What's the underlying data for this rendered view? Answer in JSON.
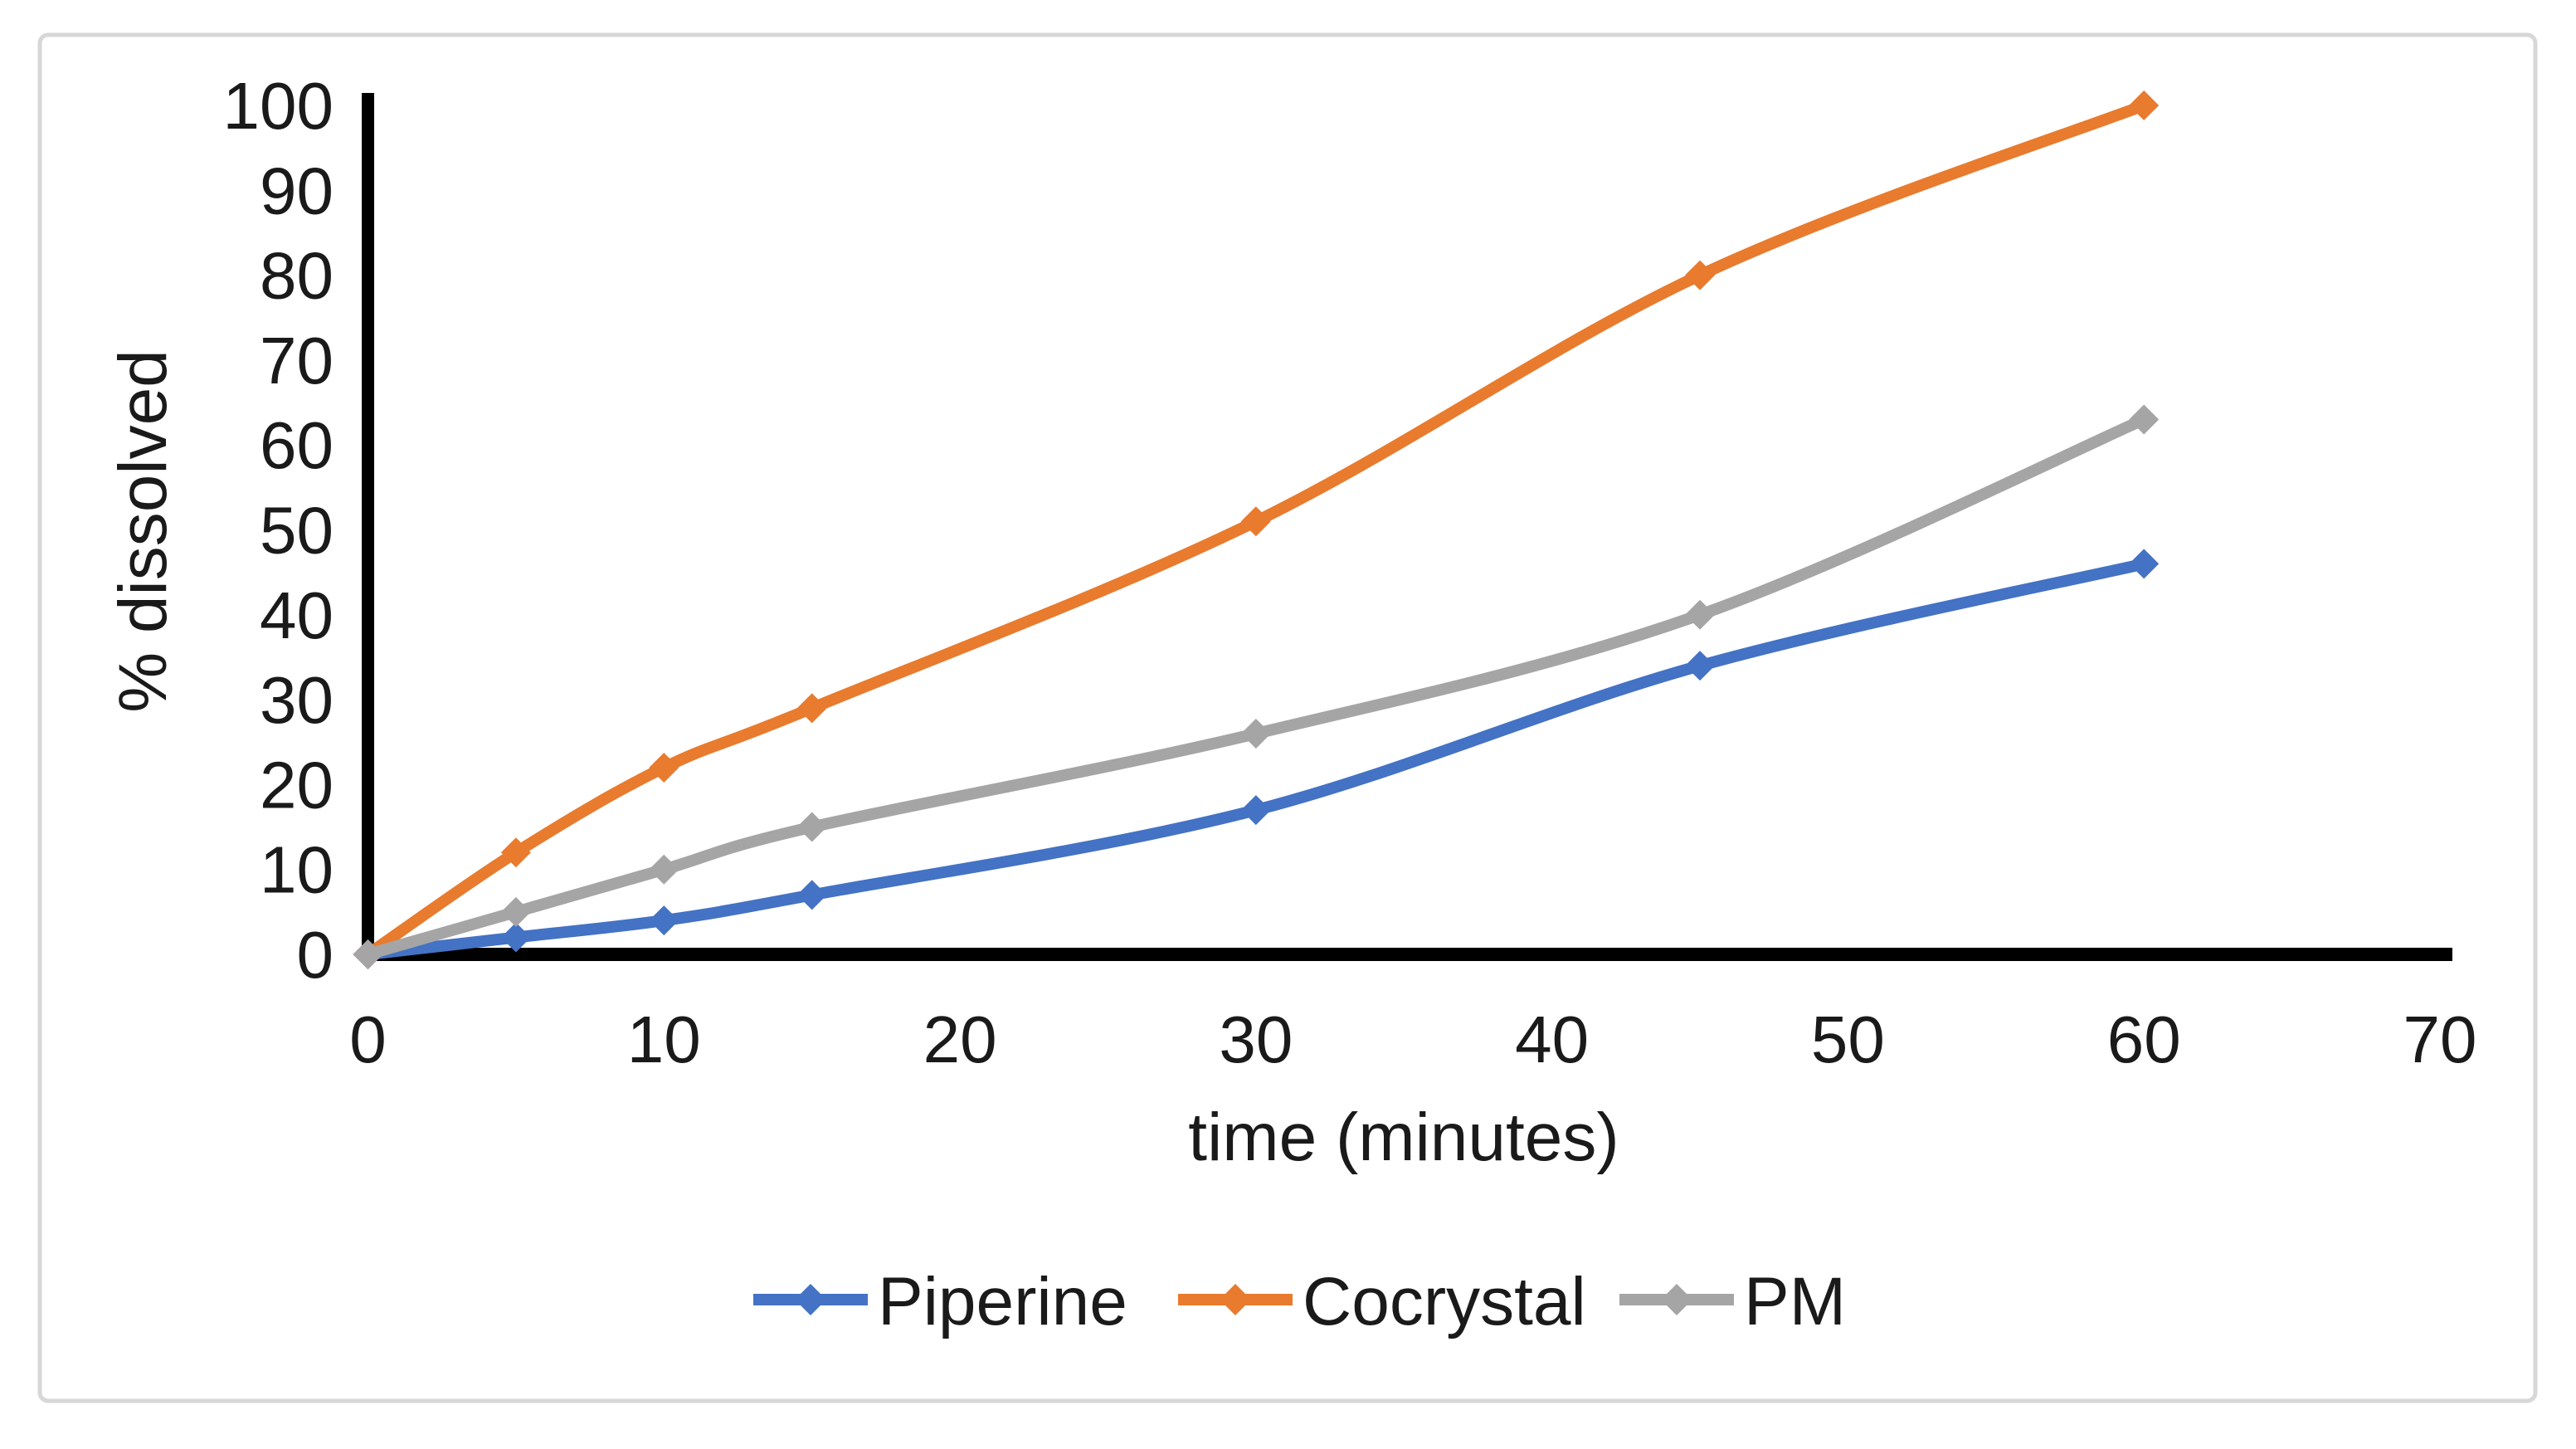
{
  "frame": {
    "background": "#ffffff",
    "border_color": "#d7d7d7"
  },
  "chart_data": {
    "type": "line",
    "title": "",
    "xlabel": "time (minutes)",
    "ylabel": "% dissolved",
    "x": [
      0,
      5,
      10,
      15,
      30,
      45,
      60
    ],
    "series": [
      {
        "name": "Piperine",
        "color": "#4472C4",
        "values": [
          0,
          2,
          4,
          7,
          17,
          34,
          46
        ]
      },
      {
        "name": "Cocrystal",
        "color": "#E87B2E",
        "values": [
          0,
          12,
          22,
          29,
          51,
          80,
          100
        ]
      },
      {
        "name": "PM",
        "color": "#A5A5A5",
        "values": [
          0,
          5,
          10,
          15,
          26,
          40,
          63
        ]
      }
    ],
    "xlim": [
      0,
      70
    ],
    "ylim": [
      0,
      100
    ],
    "x_ticks": [
      0,
      10,
      20,
      30,
      40,
      50,
      60,
      70
    ],
    "y_ticks": [
      0,
      10,
      20,
      30,
      40,
      50,
      60,
      70,
      80,
      90,
      100
    ],
    "grid": false,
    "smooth": true,
    "marker": "diamond",
    "axis_color": "#000000",
    "legend_position": "bottom"
  }
}
